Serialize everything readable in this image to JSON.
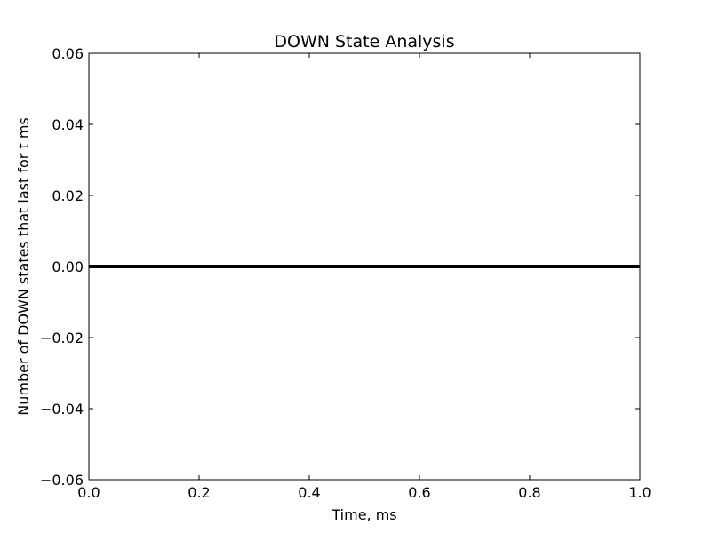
{
  "chart_data": {
    "type": "line",
    "title": "DOWN State Analysis",
    "xlabel": "Time, ms",
    "ylabel": "Number of DOWN states that last for t ms",
    "xlim": [
      0.0,
      1.0
    ],
    "ylim": [
      -0.06,
      0.06
    ],
    "x_ticks": [
      {
        "value": 0.0,
        "label": "0.0"
      },
      {
        "value": 0.2,
        "label": "0.2"
      },
      {
        "value": 0.4,
        "label": "0.4"
      },
      {
        "value": 0.6,
        "label": "0.6"
      },
      {
        "value": 0.8,
        "label": "0.8"
      },
      {
        "value": 1.0,
        "label": "1.0"
      }
    ],
    "y_ticks": [
      {
        "value": 0.06,
        "label": "0.06"
      },
      {
        "value": 0.04,
        "label": "0.04"
      },
      {
        "value": 0.02,
        "label": "0.02"
      },
      {
        "value": 0.0,
        "label": "0.00"
      },
      {
        "value": -0.02,
        "label": "−0.02"
      },
      {
        "value": -0.04,
        "label": "−0.04"
      },
      {
        "value": -0.06,
        "label": "−0.06"
      }
    ],
    "grid": false,
    "series": [
      {
        "x": [
          0.0,
          1.0
        ],
        "y": [
          0.0,
          0.0
        ],
        "color": "#000000"
      }
    ]
  }
}
